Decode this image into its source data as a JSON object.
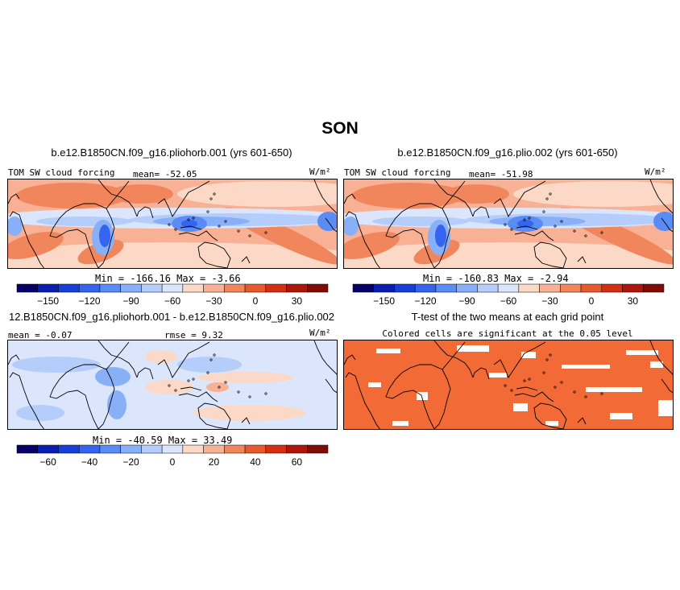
{
  "page": {
    "title": "SON"
  },
  "panels": [
    {
      "id": "p1",
      "title": "b.e12.B1850CN.f09_g16.pliohorb.001 (yrs 601-650)",
      "left_label": "TOM SW cloud forcing",
      "center_label": "mean= -52.05",
      "units": "W/m²",
      "minmax": "Min = -166.16 Max = -3.66"
    },
    {
      "id": "p2",
      "title": "b.e12.B1850CN.f09_g16.plio.002 (yrs 601-650)",
      "left_label": "TOM SW cloud forcing",
      "center_label": "mean= -51.98",
      "units": "W/m²",
      "minmax": "Min = -160.83 Max = -2.94"
    },
    {
      "id": "p3",
      "title": "12.B1850CN.f09_g16.pliohorb.001 - b.e12.B1850CN.f09_g16.plio.002",
      "left_label": "mean = -0.07",
      "center_label": "rmse = 9.32",
      "units": "W/m²",
      "minmax": "Min = -40.59 Max = 33.49"
    },
    {
      "id": "p4",
      "title": "T-test of the two means at each grid point",
      "subtitle": "Colored cells are significant at the 0.05 level"
    }
  ],
  "chart_data": [
    {
      "type": "heatmap",
      "title": "b.e12.B1850CN.f09_g16.pliohorb.001 (yrs 601-650)",
      "variable": "TOM SW cloud forcing",
      "units": "W/m²",
      "mean": -52.05,
      "min": -166.16,
      "max": -3.66,
      "colorbar": {
        "levels": [
          -165,
          -150,
          -135,
          -120,
          -105,
          -90,
          -75,
          -60,
          -45,
          -30,
          -15,
          0,
          15,
          30,
          45
        ],
        "tick_labels": [
          "-150",
          "-120",
          "-90",
          "-60",
          "-30",
          "0",
          "30"
        ],
        "colors": [
          "#08006a",
          "#0a1fb0",
          "#1640d8",
          "#3464f0",
          "#5a8cf5",
          "#88b0f8",
          "#b4cdfa",
          "#dbe6fc",
          "#fbd9c6",
          "#f8b195",
          "#f1865d",
          "#e75a2d",
          "#d42e13",
          "#ad170b",
          "#800c07"
        ]
      }
    },
    {
      "type": "heatmap",
      "title": "b.e12.B1850CN.f09_g16.plio.002 (yrs 601-650)",
      "variable": "TOM SW cloud forcing",
      "units": "W/m²",
      "mean": -51.98,
      "min": -160.83,
      "max": -2.94,
      "colorbar": {
        "levels": [
          -165,
          -150,
          -135,
          -120,
          -105,
          -90,
          -75,
          -60,
          -45,
          -30,
          -15,
          0,
          15,
          30,
          45
        ],
        "tick_labels": [
          "-150",
          "-120",
          "-90",
          "-60",
          "-30",
          "0",
          "30"
        ],
        "colors": [
          "#08006a",
          "#0a1fb0",
          "#1640d8",
          "#3464f0",
          "#5a8cf5",
          "#88b0f8",
          "#b4cdfa",
          "#dbe6fc",
          "#fbd9c6",
          "#f8b195",
          "#f1865d",
          "#e75a2d",
          "#d42e13",
          "#ad170b",
          "#800c07"
        ]
      }
    },
    {
      "type": "heatmap",
      "title": "12.B1850CN.f09_g16.pliohorb.001 - b.e12.B1850CN.f09_g16.plio.002",
      "units": "W/m²",
      "mean": -0.07,
      "rmse": 9.32,
      "min": -40.59,
      "max": 33.49,
      "colorbar": {
        "levels": [
          -70,
          -60,
          -50,
          -40,
          -30,
          -20,
          -10,
          0,
          10,
          20,
          30,
          40,
          50,
          60,
          70
        ],
        "tick_labels": [
          "-60",
          "-40",
          "-20",
          "0",
          "20",
          "40",
          "60"
        ],
        "colors": [
          "#08006a",
          "#0a1fb0",
          "#1640d8",
          "#3464f0",
          "#5a8cf5",
          "#88b0f8",
          "#b4cdfa",
          "#dbe6fc",
          "#fbd9c6",
          "#f8b195",
          "#f1865d",
          "#e75a2d",
          "#d42e13",
          "#ad170b",
          "#800c07"
        ]
      }
    },
    {
      "type": "heatmap",
      "title": "T-test of the two means at each grid point",
      "subtitle": "Colored cells are significant at the 0.05 level",
      "significance_level": 0.05,
      "significant_color": "#f26a35"
    }
  ]
}
